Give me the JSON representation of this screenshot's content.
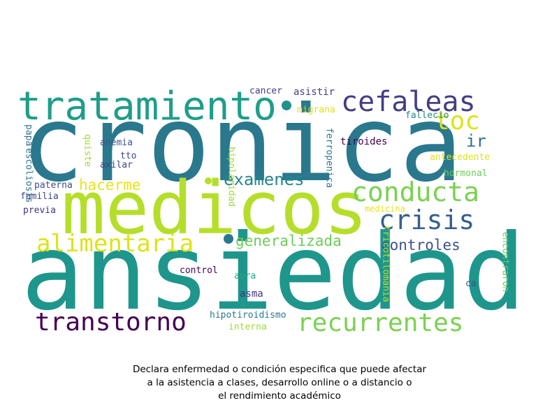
{
  "wordcloud": {
    "words": [
      {
        "text": "cronica",
        "color": "#2a788e"
      },
      {
        "text": "ansiedad",
        "color": "#1f968b"
      },
      {
        "text": "medicos",
        "color": "#b5de2b"
      },
      {
        "text": "tratamiento",
        "color": "#1f9e89"
      },
      {
        "text": "cefaleas",
        "color": "#433e85"
      },
      {
        "text": "toc",
        "color": "#dde318"
      },
      {
        "text": "ir",
        "color": "#2d708e"
      },
      {
        "text": "conducta",
        "color": "#7ad151"
      },
      {
        "text": "crisis",
        "color": "#355f8d"
      },
      {
        "text": "examenes",
        "color": "#25858e"
      },
      {
        "text": "hacerme",
        "color": "#e5e419"
      },
      {
        "text": "alimentaria",
        "color": "#dde318"
      },
      {
        "text": "generalizada",
        "color": "#6ccd5a"
      },
      {
        "text": "controles",
        "color": "#3b528b"
      },
      {
        "text": "transtorno",
        "color": "#440154"
      },
      {
        "text": "recurrentes",
        "color": "#7ad151"
      },
      {
        "text": "cancer",
        "color": "#433e85"
      },
      {
        "text": "asistir",
        "color": "#414487"
      },
      {
        "text": "migrana",
        "color": "#dde318"
      },
      {
        "text": "fallecio",
        "color": "#25858e"
      },
      {
        "text": "tiroides",
        "color": "#440154"
      },
      {
        "text": "antecedente",
        "color": "#dde318"
      },
      {
        "text": "hormonal",
        "color": "#6ccd5a"
      },
      {
        "text": "ferropenica",
        "color": "#2a788e"
      },
      {
        "text": "bipolaridad",
        "color": "#a0da39"
      },
      {
        "text": "anemia",
        "color": "#39568c"
      },
      {
        "text": "tto",
        "color": "#404688"
      },
      {
        "text": "axilar",
        "color": "#414487"
      },
      {
        "text": "quiste",
        "color": "#a0da39"
      },
      {
        "text": "papa",
        "color": "#2c728e"
      },
      {
        "text": "escoliosis",
        "color": "#2c728e"
      },
      {
        "text": "paterna",
        "color": "#3e4989"
      },
      {
        "text": "familia",
        "color": "#3e4989"
      },
      {
        "text": "previa",
        "color": "#46337f"
      },
      {
        "text": "medicina",
        "color": "#e5e419"
      },
      {
        "text": "tricotilomania",
        "color": "#b5de2b"
      },
      {
        "text": "encontraron",
        "color": "#6ccd5a"
      },
      {
        "text": "control",
        "color": "#440154"
      },
      {
        "text": "aura",
        "color": "#22a884"
      },
      {
        "text": "asma",
        "color": "#46337f"
      },
      {
        "text": "ca",
        "color": "#3b528b"
      },
      {
        "text": "hipotiroidismo",
        "color": "#2a788e"
      },
      {
        "text": "interna",
        "color": "#a0da39"
      }
    ],
    "dot_colors": [
      "#21918c",
      "#b5de2b",
      "#2a788e"
    ]
  },
  "caption": {
    "line1": "Declara enfermedad o condición especifica que puede afectar",
    "line2": "a la asistencia a clases, desarrollo online o a distancio o",
    "line3": "el rendimiento académico"
  }
}
